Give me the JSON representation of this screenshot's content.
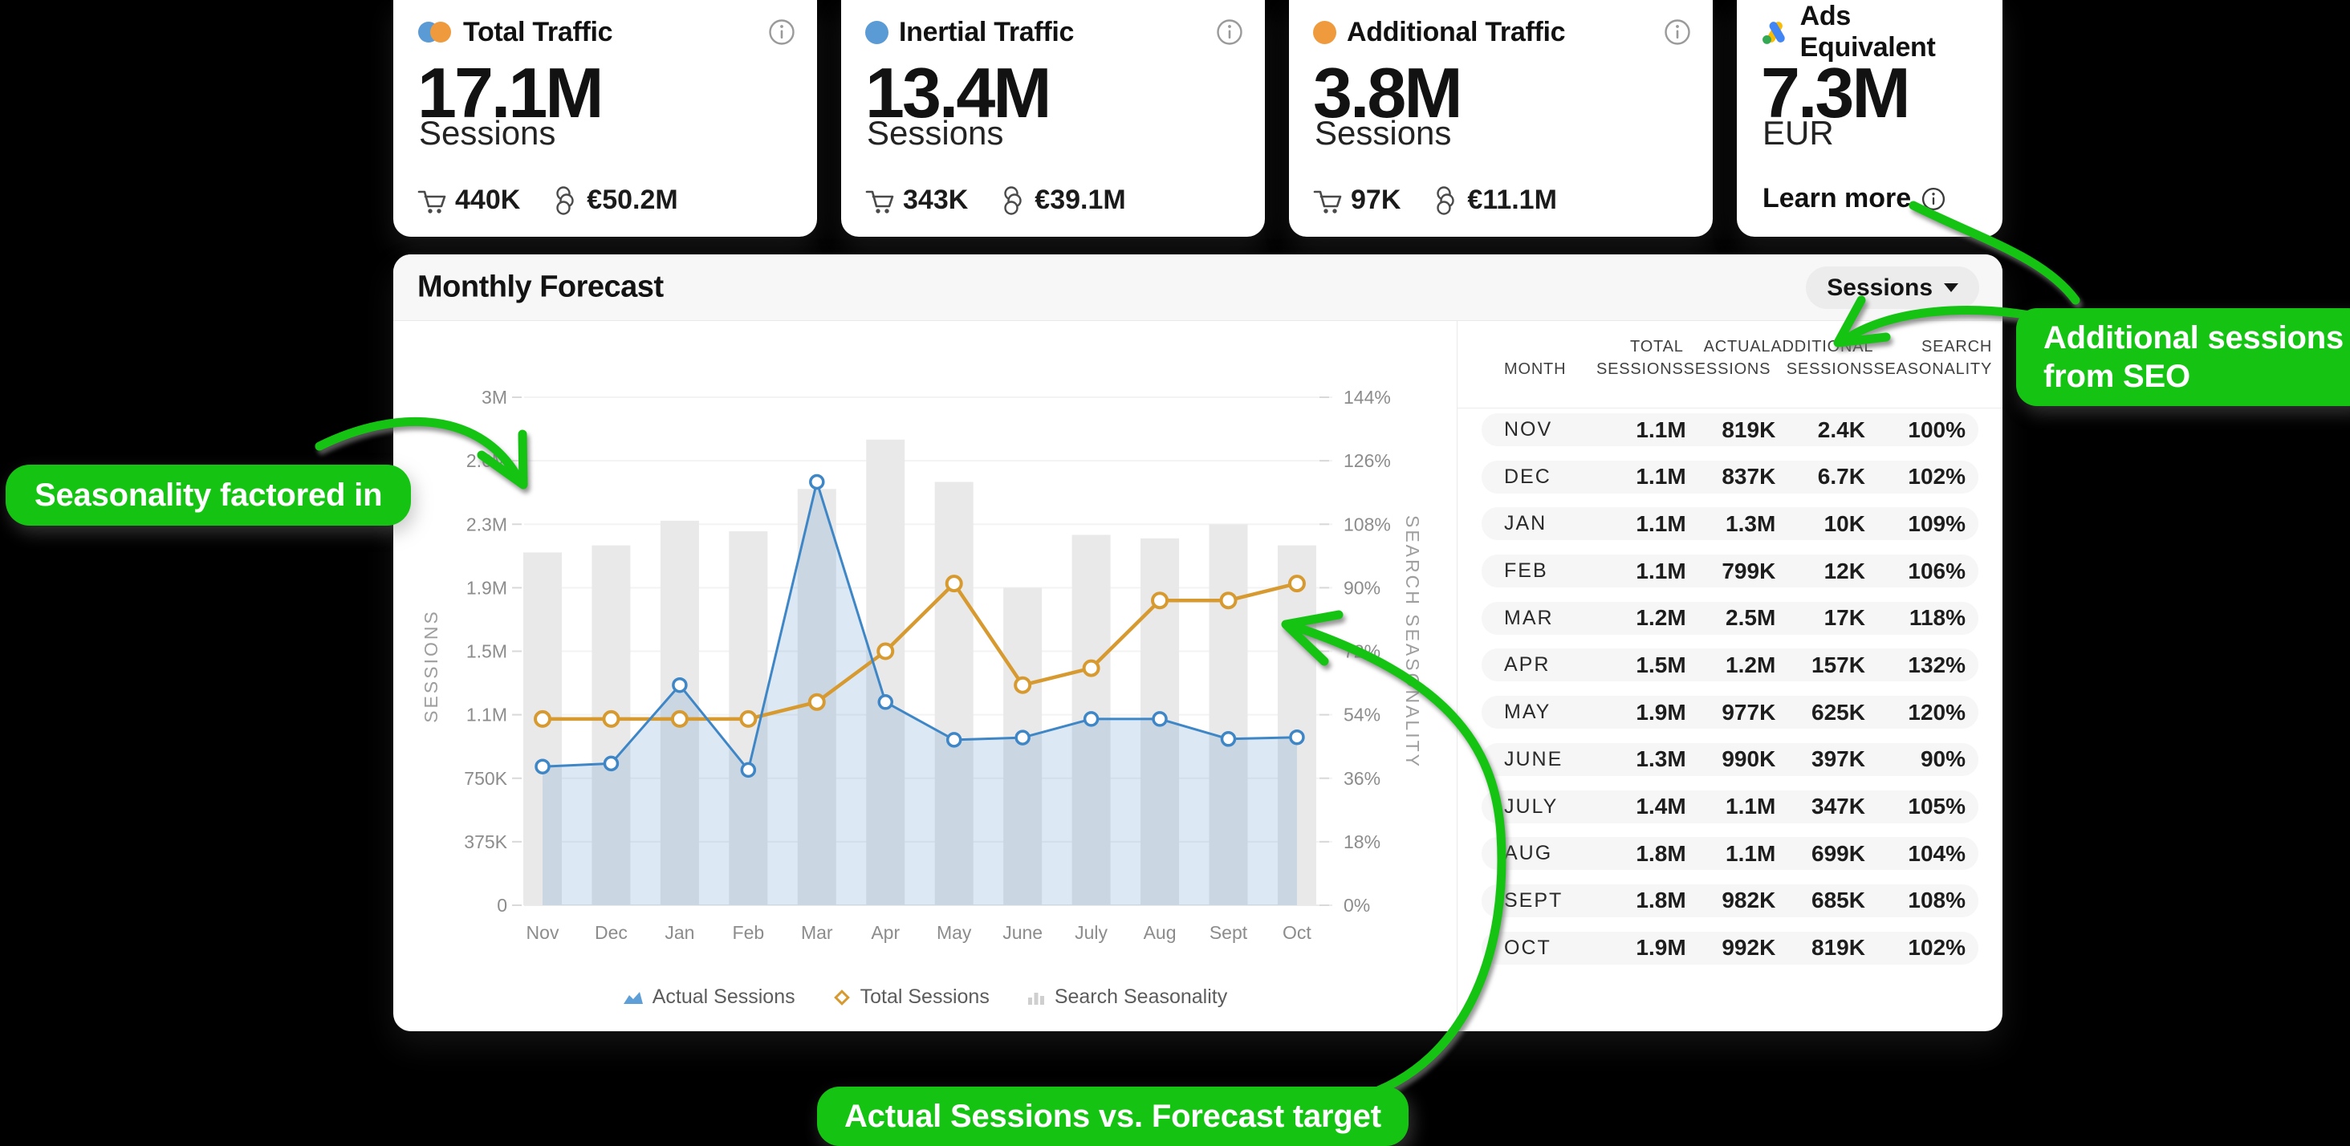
{
  "cards": [
    {
      "title": "Total Traffic",
      "value": "17.1M",
      "unit": "Sessions",
      "cart_value": "440K",
      "money_value": "€50.2M"
    },
    {
      "title": "Inertial Traffic",
      "value": "13.4M",
      "unit": "Sessions",
      "cart_value": "343K",
      "money_value": "€39.1M"
    },
    {
      "title": "Additional Traffic",
      "value": "3.8M",
      "unit": "Sessions",
      "cart_value": "97K",
      "money_value": "€11.1M"
    },
    {
      "title": "Ads Equivalent",
      "value": "7.3M",
      "unit": "EUR",
      "learn_more": "Learn more"
    }
  ],
  "panel": {
    "title": "Monthly Forecast",
    "dropdown_value": "Sessions"
  },
  "chart_data": {
    "type": "combo",
    "categories": [
      "Nov",
      "Dec",
      "Jan",
      "Feb",
      "Mar",
      "Apr",
      "May",
      "June",
      "July",
      "Aug",
      "Sept",
      "Oct"
    ],
    "series": [
      {
        "name": "Actual Sessions",
        "type": "area-line",
        "axis": "left",
        "color": "#3e86c6",
        "values": [
          819000,
          837000,
          1300000,
          799000,
          2500000,
          1200000,
          977000,
          990000,
          1100000,
          1100000,
          982000,
          992000
        ]
      },
      {
        "name": "Total Sessions",
        "type": "line",
        "axis": "left",
        "color": "#d79a30",
        "values": [
          1100000,
          1100000,
          1100000,
          1100000,
          1200000,
          1500000,
          1900000,
          1300000,
          1400000,
          1800000,
          1800000,
          1900000
        ]
      },
      {
        "name": "Search Seasonality",
        "type": "bar",
        "axis": "right",
        "color": "#e9e9e9",
        "values": [
          100,
          102,
          109,
          106,
          118,
          132,
          120,
          90,
          105,
          104,
          108,
          102
        ]
      }
    ],
    "left_axis": {
      "title": "SESSIONS",
      "ticks": [
        "3M",
        "2.6M",
        "2.3M",
        "1.9M",
        "1.5M",
        "1.1M",
        "750K",
        "375K",
        "0"
      ],
      "max": 3000000
    },
    "right_axis": {
      "title": "SEARCH SEASONALITY",
      "ticks": [
        "144%",
        "126%",
        "108%",
        "90%",
        "72%",
        "54%",
        "36%",
        "18%",
        "0%"
      ],
      "max": 144
    },
    "grid": true,
    "legend_position": "bottom"
  },
  "table": {
    "headers": [
      [
        "MONTH"
      ],
      [
        "TOTAL",
        "SESSIONS"
      ],
      [
        "ACTUAL",
        "SESSIONS"
      ],
      [
        "ADDITIONAL",
        "SESSIONS"
      ],
      [
        "SEARCH",
        "SEASONALITY"
      ]
    ],
    "rows": [
      [
        "NOV",
        "1.1M",
        "819K",
        "2.4K",
        "100%"
      ],
      [
        "DEC",
        "1.1M",
        "837K",
        "6.7K",
        "102%"
      ],
      [
        "JAN",
        "1.1M",
        "1.3M",
        "10K",
        "109%"
      ],
      [
        "FEB",
        "1.1M",
        "799K",
        "12K",
        "106%"
      ],
      [
        "MAR",
        "1.2M",
        "2.5M",
        "17K",
        "118%"
      ],
      [
        "APR",
        "1.5M",
        "1.2M",
        "157K",
        "132%"
      ],
      [
        "MAY",
        "1.9M",
        "977K",
        "625K",
        "120%"
      ],
      [
        "JUNE",
        "1.3M",
        "990K",
        "397K",
        "90%"
      ],
      [
        "JULY",
        "1.4M",
        "1.1M",
        "347K",
        "105%"
      ],
      [
        "AUG",
        "1.8M",
        "1.1M",
        "699K",
        "104%"
      ],
      [
        "SEPT",
        "1.8M",
        "982K",
        "685K",
        "108%"
      ],
      [
        "OCT",
        "1.9M",
        "992K",
        "819K",
        "102%"
      ]
    ]
  },
  "callouts": {
    "left": "Seasonality factored in",
    "right_line1": "Additional sessions",
    "right_line2": "from SEO",
    "bottom": "Actual Sessions vs. Forecast target"
  },
  "colors": {
    "accent_green": "#15c412",
    "line_blue": "#3e86c6",
    "line_orange": "#d79a30",
    "bar_gray": "#e9e9e9",
    "dot_blue": "#5b9bd5",
    "dot_orange": "#f09a3e"
  }
}
